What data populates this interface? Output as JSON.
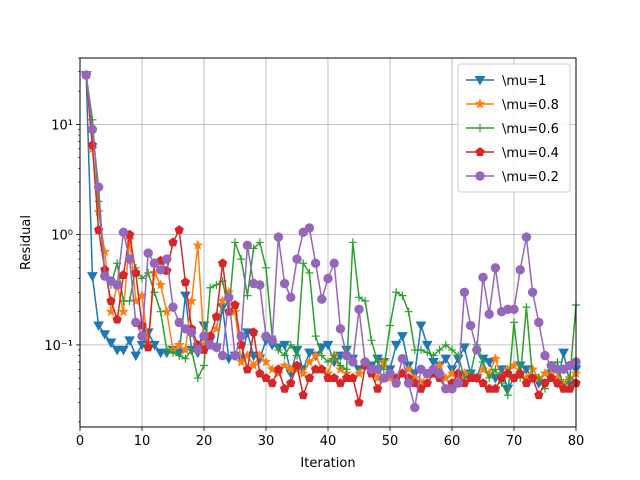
{
  "chart_data": {
    "type": "line",
    "title": "",
    "xlabel": "Iteration",
    "ylabel": "Residual",
    "xlim": [
      0,
      80
    ],
    "ylim": [
      0.018,
      40
    ],
    "yscale": "log",
    "grid": true,
    "legend_position": "top-right",
    "x_ticks": [
      0,
      10,
      20,
      30,
      40,
      50,
      60,
      70,
      80
    ],
    "x_tick_labels": [
      "0",
      "10",
      "20",
      "30",
      "40",
      "50",
      "60",
      "70",
      "80"
    ],
    "y_ticks": [
      0.1,
      1,
      10
    ],
    "y_tick_labels": [
      "10⁻¹",
      "10⁰",
      "10¹"
    ],
    "series": [
      {
        "name": "\\mu=1",
        "color": "#1f77b4",
        "marker": "triangle-down",
        "x": [
          1,
          2,
          3,
          4,
          5,
          6,
          7,
          8,
          9,
          10,
          11,
          12,
          13,
          14,
          15,
          16,
          17,
          18,
          19,
          20,
          21,
          22,
          23,
          24,
          25,
          26,
          27,
          28,
          29,
          30,
          31,
          32,
          33,
          34,
          35,
          36,
          37,
          38,
          39,
          40,
          41,
          42,
          43,
          44,
          45,
          46,
          47,
          48,
          49,
          50,
          51,
          52,
          53,
          54,
          55,
          56,
          57,
          58,
          59,
          60,
          61,
          62,
          63,
          64,
          65,
          66,
          67,
          68,
          69,
          70,
          71,
          72,
          73,
          74,
          75,
          76,
          77,
          78,
          79,
          80
        ],
        "y": [
          28,
          0.42,
          0.15,
          0.125,
          0.105,
          0.09,
          0.09,
          0.11,
          0.08,
          0.1,
          0.13,
          0.1,
          0.085,
          0.085,
          0.09,
          0.085,
          0.28,
          0.09,
          0.085,
          0.15,
          0.11,
          0.095,
          0.22,
          0.075,
          0.08,
          0.075,
          0.13,
          0.08,
          0.075,
          0.11,
          0.1,
          0.095,
          0.1,
          0.055,
          0.09,
          0.06,
          0.085,
          0.08,
          0.095,
          0.1,
          0.07,
          0.08,
          0.09,
          0.075,
          0.06,
          0.065,
          0.065,
          0.075,
          0.07,
          0.06,
          0.1,
          0.12,
          0.065,
          0.055,
          0.15,
          0.1,
          0.07,
          0.065,
          0.075,
          0.06,
          0.075,
          0.095,
          0.055,
          0.05,
          0.075,
          0.07,
          0.05,
          0.06,
          0.04,
          0.05,
          0.065,
          0.06,
          0.05,
          0.045,
          0.045,
          0.055,
          0.045,
          0.085,
          0.045,
          0.06
        ]
      },
      {
        "name": "\\mu=0.8",
        "color": "#ff7f0e",
        "marker": "star",
        "x": [
          1,
          2,
          3,
          4,
          5,
          6,
          7,
          8,
          9,
          10,
          11,
          12,
          13,
          14,
          15,
          16,
          17,
          18,
          19,
          20,
          21,
          22,
          23,
          24,
          25,
          26,
          27,
          28,
          29,
          30,
          31,
          32,
          33,
          34,
          35,
          36,
          37,
          38,
          39,
          40,
          41,
          42,
          43,
          44,
          45,
          46,
          47,
          48,
          49,
          50,
          51,
          52,
          53,
          54,
          55,
          56,
          57,
          58,
          59,
          60,
          61,
          62,
          63,
          64,
          65,
          66,
          67,
          68,
          69,
          70,
          71,
          72,
          73,
          74,
          75,
          76,
          77,
          78,
          79,
          80
        ],
        "y": [
          28,
          6,
          1.6,
          0.7,
          0.2,
          0.35,
          0.2,
          0.9,
          0.25,
          0.28,
          0.1,
          0.45,
          0.35,
          0.2,
          0.09,
          0.1,
          0.09,
          0.25,
          0.8,
          0.1,
          0.12,
          0.14,
          0.25,
          0.3,
          0.2,
          0.07,
          0.08,
          0.065,
          0.08,
          0.07,
          0.06,
          0.055,
          0.065,
          0.06,
          0.06,
          0.055,
          0.07,
          0.08,
          0.06,
          0.055,
          0.08,
          0.06,
          0.055,
          0.05,
          0.055,
          0.07,
          0.06,
          0.05,
          0.07,
          0.05,
          0.045,
          0.055,
          0.06,
          0.05,
          0.045,
          0.055,
          0.06,
          0.065,
          0.05,
          0.055,
          0.05,
          0.055,
          0.05,
          0.05,
          0.06,
          0.055,
          0.075,
          0.05,
          0.06,
          0.065,
          0.055,
          0.05,
          0.06,
          0.05,
          0.055,
          0.055,
          0.05,
          0.045,
          0.05,
          0.055
        ]
      },
      {
        "name": "\\mu=0.6",
        "color": "#2ca02c",
        "marker": "plus",
        "x": [
          1,
          2,
          3,
          4,
          5,
          6,
          7,
          8,
          9,
          10,
          11,
          12,
          13,
          14,
          15,
          16,
          17,
          18,
          19,
          20,
          21,
          22,
          23,
          24,
          25,
          26,
          27,
          28,
          29,
          30,
          31,
          32,
          33,
          34,
          35,
          36,
          37,
          38,
          39,
          40,
          41,
          42,
          43,
          44,
          45,
          46,
          47,
          48,
          49,
          50,
          51,
          52,
          53,
          54,
          55,
          56,
          57,
          58,
          59,
          60,
          61,
          62,
          63,
          64,
          65,
          66,
          67,
          68,
          69,
          70,
          71,
          72,
          73,
          74,
          75,
          76,
          77,
          78,
          79,
          80
        ],
        "y": [
          28,
          11,
          2,
          0.45,
          0.35,
          0.55,
          0.25,
          0.25,
          0.5,
          0.4,
          0.45,
          0.3,
          0.2,
          0.09,
          0.085,
          0.08,
          0.075,
          0.09,
          0.05,
          0.065,
          0.33,
          0.35,
          0.38,
          0.2,
          0.85,
          0.6,
          0.28,
          0.75,
          0.85,
          0.5,
          0.12,
          0.09,
          0.08,
          0.1,
          0.08,
          0.55,
          0.45,
          0.12,
          0.08,
          0.07,
          0.08,
          0.065,
          0.06,
          0.85,
          0.27,
          0.25,
          0.11,
          0.07,
          0.06,
          0.15,
          0.3,
          0.28,
          0.2,
          0.09,
          0.09,
          0.085,
          0.08,
          0.09,
          0.1,
          0.09,
          0.08,
          0.05,
          0.055,
          0.1,
          0.07,
          0.05,
          0.06,
          0.045,
          0.035,
          0.16,
          0.05,
          0.22,
          0.05,
          0.05,
          0.04,
          0.065,
          0.07,
          0.04,
          0.05,
          0.23
        ]
      },
      {
        "name": "\\mu=0.4",
        "color": "#d62728",
        "marker": "pentagon",
        "x": [
          1,
          2,
          3,
          4,
          5,
          6,
          7,
          8,
          9,
          10,
          11,
          12,
          13,
          14,
          15,
          16,
          17,
          18,
          19,
          20,
          21,
          22,
          23,
          24,
          25,
          26,
          27,
          28,
          29,
          30,
          31,
          32,
          33,
          34,
          35,
          36,
          37,
          38,
          39,
          40,
          41,
          42,
          43,
          44,
          45,
          46,
          47,
          48,
          49,
          50,
          51,
          52,
          53,
          54,
          55,
          56,
          57,
          58,
          59,
          60,
          61,
          62,
          63,
          64,
          65,
          66,
          67,
          68,
          69,
          70,
          71,
          72,
          73,
          74,
          75,
          76,
          77,
          78,
          79,
          80
        ],
        "y": [
          28,
          6.5,
          1.1,
          0.48,
          0.25,
          0.17,
          0.43,
          1,
          0.45,
          0.15,
          0.095,
          0.55,
          0.58,
          0.47,
          0.85,
          1.1,
          0.37,
          0.14,
          0.1,
          0.09,
          0.12,
          0.18,
          0.55,
          0.2,
          0.23,
          0.1,
          0.06,
          0.13,
          0.055,
          0.05,
          0.045,
          0.06,
          0.04,
          0.045,
          0.065,
          0.035,
          0.05,
          0.06,
          0.06,
          0.05,
          0.05,
          0.045,
          0.05,
          0.05,
          0.03,
          0.065,
          0.055,
          0.04,
          0.05,
          0.055,
          0.05,
          0.055,
          0.05,
          0.045,
          0.04,
          0.045,
          0.055,
          0.05,
          0.04,
          0.045,
          0.055,
          0.045,
          0.05,
          0.05,
          0.045,
          0.04,
          0.04,
          0.05,
          0.055,
          0.05,
          0.055,
          0.045,
          0.05,
          0.035,
          0.045,
          0.05,
          0.045,
          0.04,
          0.04,
          0.045
        ]
      },
      {
        "name": "\\mu=0.2",
        "color": "#9467bd",
        "marker": "circle",
        "x": [
          1,
          2,
          3,
          4,
          5,
          6,
          7,
          8,
          9,
          10,
          11,
          12,
          13,
          14,
          15,
          16,
          17,
          18,
          19,
          20,
          21,
          22,
          23,
          24,
          25,
          26,
          27,
          28,
          29,
          30,
          31,
          32,
          33,
          34,
          35,
          36,
          37,
          38,
          39,
          40,
          41,
          42,
          43,
          44,
          45,
          46,
          47,
          48,
          49,
          50,
          51,
          52,
          53,
          54,
          55,
          56,
          57,
          58,
          59,
          60,
          61,
          62,
          63,
          64,
          65,
          66,
          67,
          68,
          69,
          70,
          71,
          72,
          73,
          74,
          75,
          76,
          77,
          78,
          79,
          80
        ],
        "y": [
          28,
          9,
          2.7,
          0.42,
          0.38,
          0.35,
          1.05,
          0.6,
          0.16,
          0.12,
          0.68,
          0.55,
          0.48,
          0.6,
          0.22,
          0.16,
          0.14,
          0.13,
          0.09,
          0.12,
          0.1,
          0.095,
          0.08,
          0.27,
          0.08,
          0.12,
          0.8,
          0.36,
          0.35,
          0.12,
          0.11,
          0.95,
          0.36,
          0.27,
          0.6,
          1.05,
          1.15,
          0.55,
          0.26,
          0.4,
          0.55,
          0.14,
          0.08,
          0.07,
          0.21,
          0.07,
          0.06,
          0.06,
          0.05,
          0.055,
          0.045,
          0.075,
          0.045,
          0.027,
          0.06,
          0.055,
          0.06,
          0.055,
          0.04,
          0.04,
          0.045,
          0.3,
          0.15,
          0.09,
          0.41,
          0.19,
          0.5,
          0.2,
          0.21,
          0.21,
          0.48,
          0.95,
          0.3,
          0.16,
          0.08,
          0.065,
          0.06,
          0.06,
          0.065,
          0.07
        ]
      }
    ]
  }
}
